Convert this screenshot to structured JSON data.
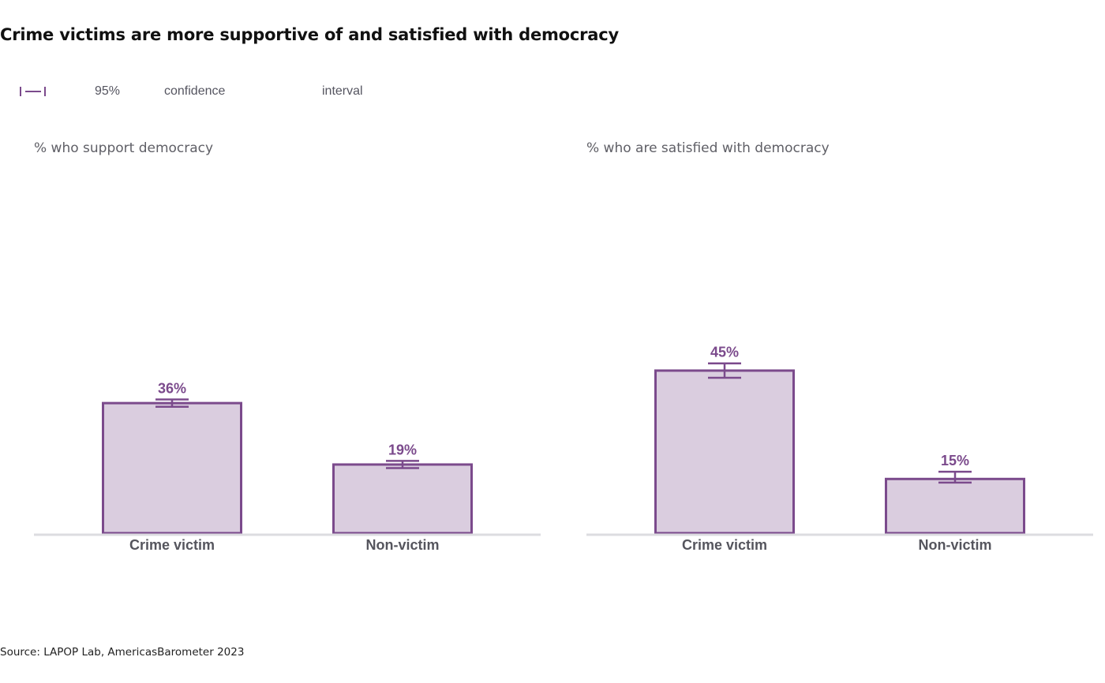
{
  "title": "Crime victims are more supportive of and satisfied with democracy",
  "legend": {
    "words": [
      "95%",
      "confidence",
      "interval"
    ],
    "icon": "error-bar-icon"
  },
  "source": "Source: LAPOP Lab, AmericasBarometer 2023",
  "colors": {
    "bar_fill": "#dacddf",
    "bar_stroke": "#7b4a8c",
    "axis": "#dcdce0",
    "label": "#55555d"
  },
  "chart_data": [
    {
      "type": "bar",
      "title": "% who support democracy",
      "categories": [
        "Crime victim",
        "Non-victim"
      ],
      "values": [
        36,
        19
      ],
      "value_labels": [
        "36%",
        "19%"
      ],
      "ci": [
        [
          35,
          37
        ],
        [
          18,
          20
        ]
      ],
      "ylim": [
        0,
        100
      ],
      "grid": false
    },
    {
      "type": "bar",
      "title": "% who are satisfied with democracy",
      "categories": [
        "Crime victim",
        "Non-victim"
      ],
      "values": [
        45,
        15
      ],
      "value_labels": [
        "45%",
        "15%"
      ],
      "ci": [
        [
          43,
          47
        ],
        [
          14,
          17
        ]
      ],
      "ylim": [
        0,
        100
      ],
      "grid": false
    }
  ]
}
